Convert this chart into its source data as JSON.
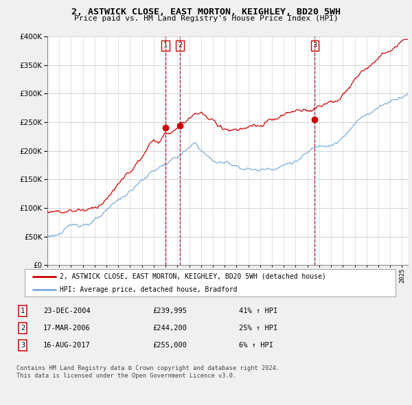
{
  "title": "2, ASTWICK CLOSE, EAST MORTON, KEIGHLEY, BD20 5WH",
  "subtitle": "Price paid vs. HM Land Registry's House Price Index (HPI)",
  "ylim": [
    0,
    400000
  ],
  "xlim_start": 1995.0,
  "xlim_end": 2025.5,
  "sale_dates": [
    2004.98,
    2006.21,
    2017.62
  ],
  "sale_prices": [
    239995,
    244200,
    255000
  ],
  "sale_labels": [
    "1",
    "2",
    "3"
  ],
  "legend_line1": "2, ASTWICK CLOSE, EAST MORTON, KEIGHLEY, BD20 5WH (detached house)",
  "legend_line2": "HPI: Average price, detached house, Bradford",
  "table_rows": [
    [
      "1",
      "23-DEC-2004",
      "£239,995",
      "41% ↑ HPI"
    ],
    [
      "2",
      "17-MAR-2006",
      "£244,200",
      "25% ↑ HPI"
    ],
    [
      "3",
      "16-AUG-2017",
      "£255,000",
      "6% ↑ HPI"
    ]
  ],
  "footnote": "Contains HM Land Registry data © Crown copyright and database right 2024.\nThis data is licensed under the Open Government Licence v3.0.",
  "line_color_red": "#cc0000",
  "line_color_blue": "#7aabdb",
  "vline_color": "#cc0000",
  "shade_color": "#ddeeff",
  "bg_color": "#f0f0f0",
  "plot_bg_color": "#ffffff"
}
